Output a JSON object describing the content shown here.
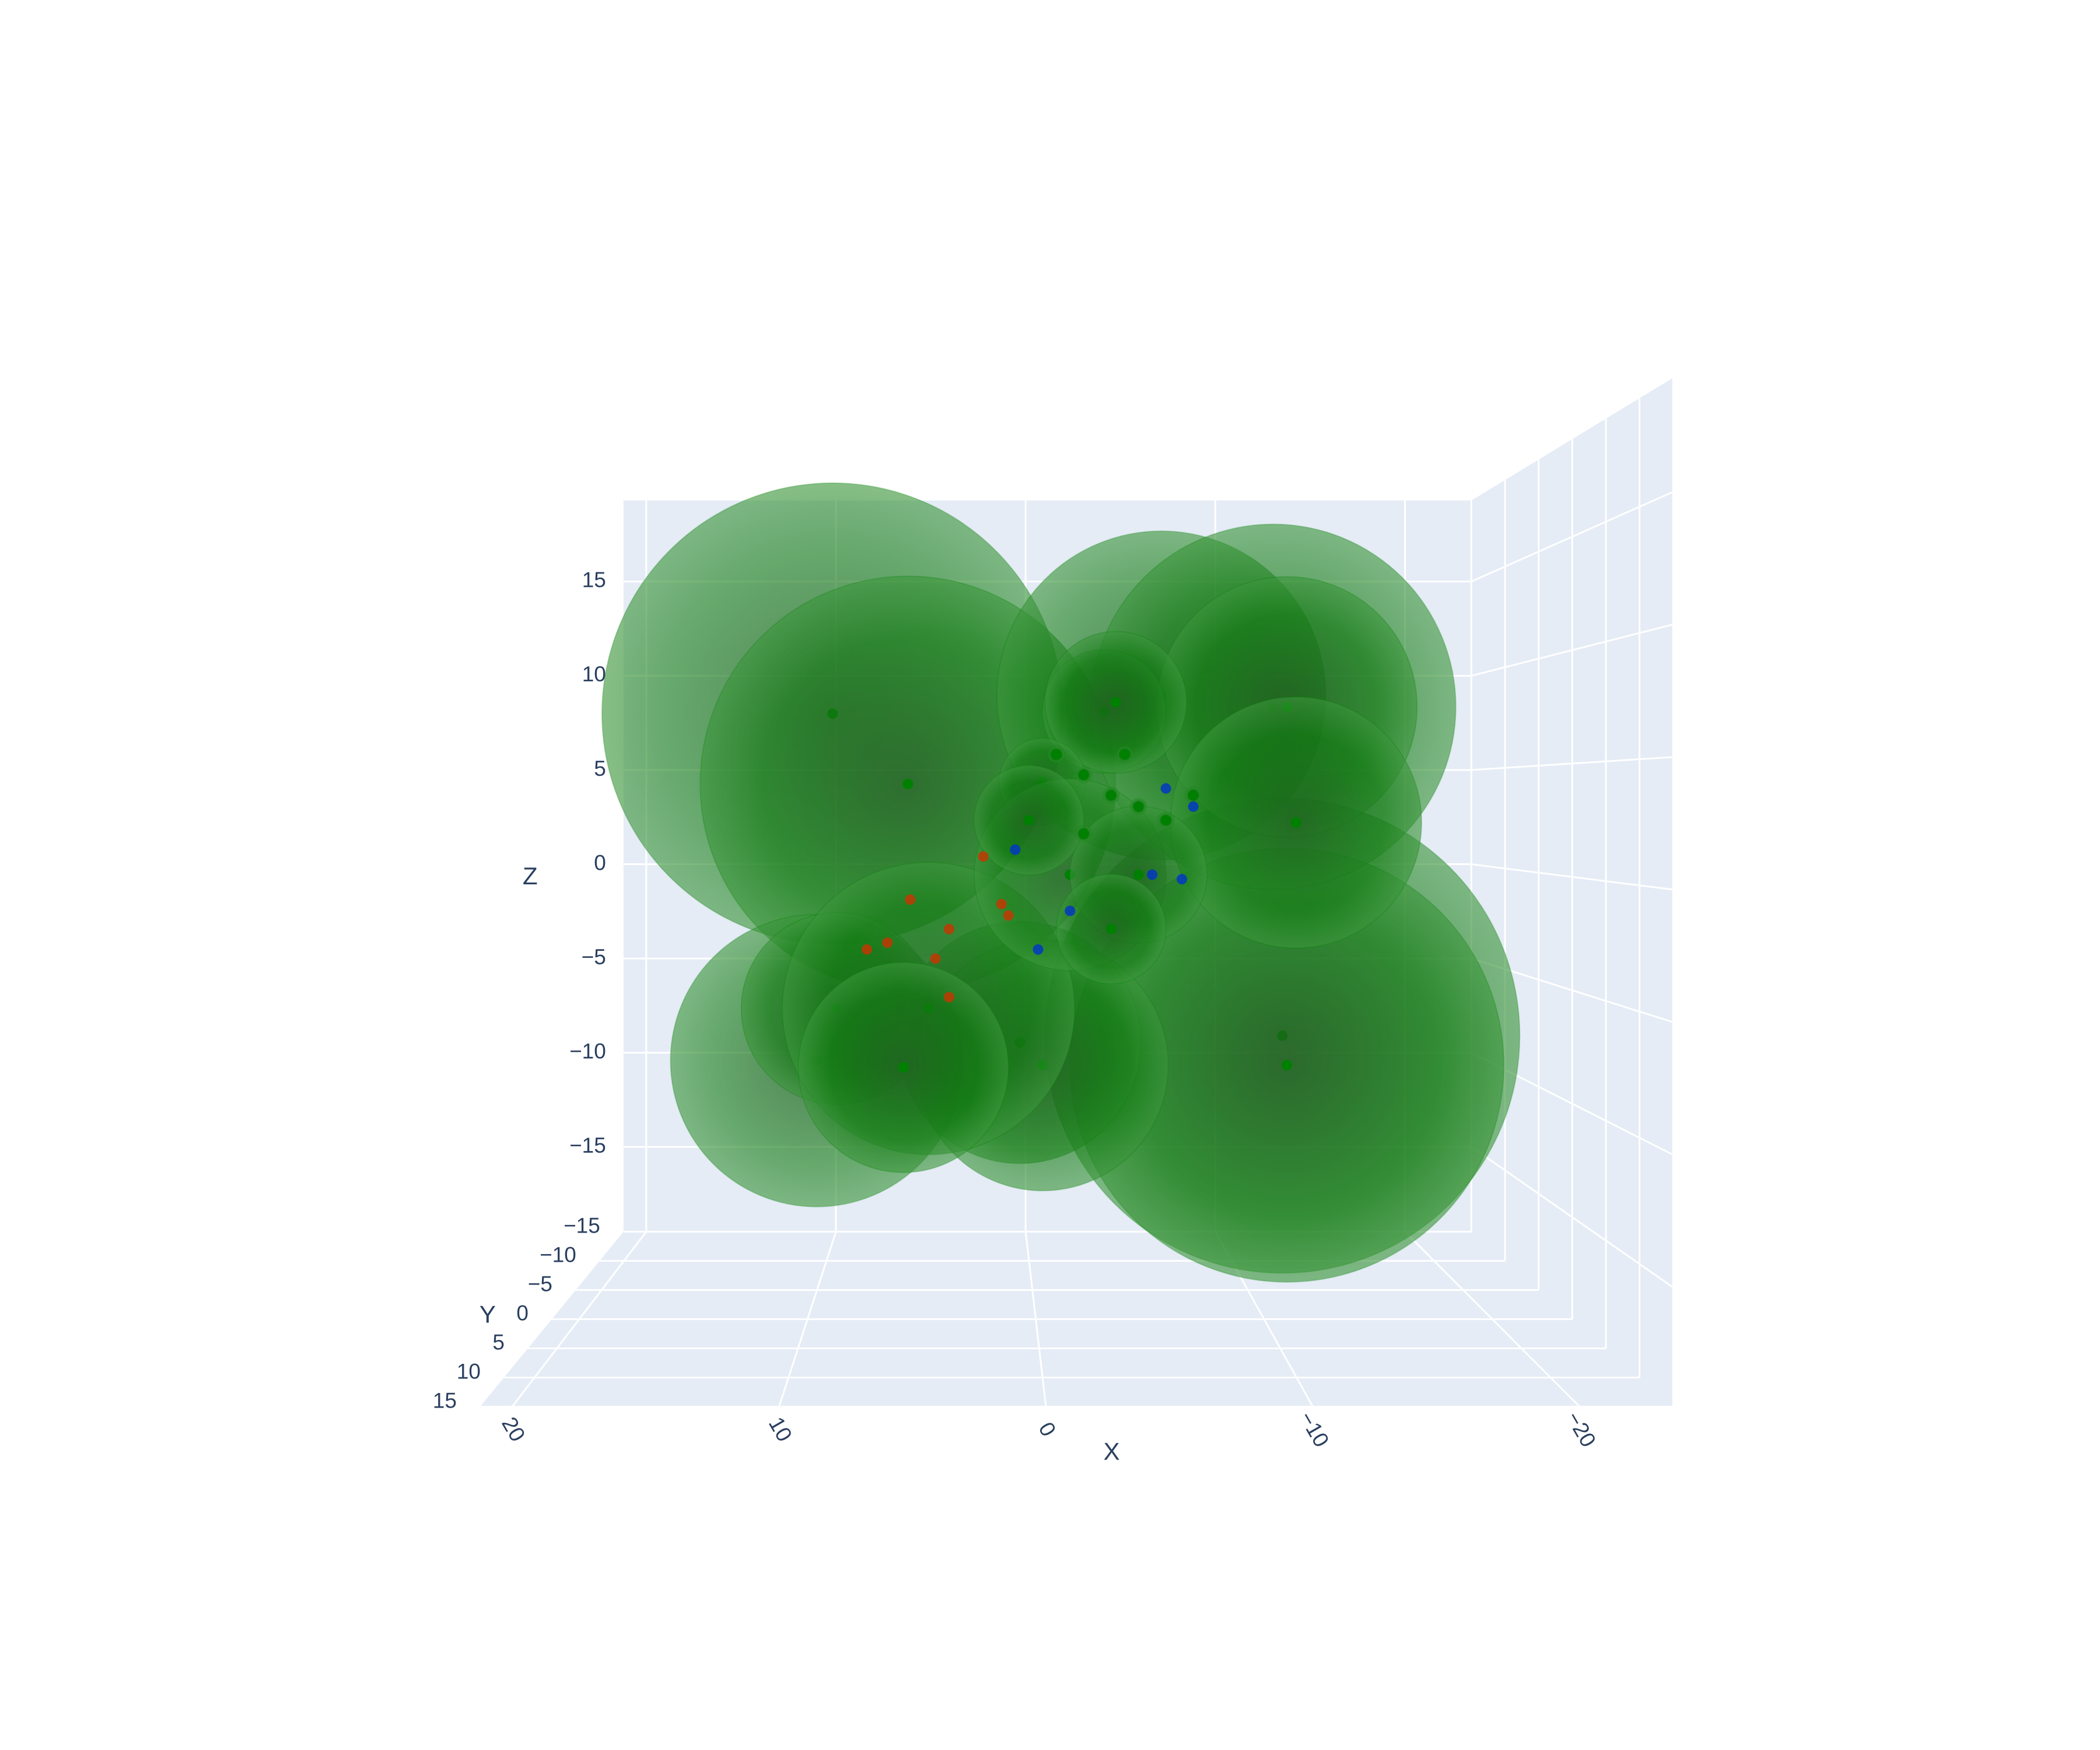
{
  "chart_data": {
    "type": "scatter3d",
    "xlabel": "X",
    "ylabel": "Y",
    "zlabel": "Z",
    "xlim": [
      -23.5,
      21.2
    ],
    "ylim": [
      -15,
      15
    ],
    "zlim": [
      -19.5,
      19.3
    ],
    "xticks": [
      {
        "value": -20,
        "label": "−20"
      },
      {
        "value": -10,
        "label": "−10"
      },
      0,
      10,
      20
    ],
    "yticks": [
      {
        "value": -15,
        "label": "−15"
      },
      {
        "value": -10,
        "label": "−10"
      },
      {
        "value": -5,
        "label": "−5"
      },
      0,
      5,
      10,
      15
    ],
    "zticks": [
      {
        "value": -15,
        "label": "−15"
      },
      {
        "value": -10,
        "label": "−10"
      },
      {
        "value": -5,
        "label": "−5"
      },
      0,
      5,
      10,
      15
    ],
    "grid": true,
    "series": [
      {
        "color": "#008000",
        "x": [
          8.9,
          5.6,
          -10.8,
          -11.0,
          9.6,
          8.7,
          0.7,
          -0.3,
          4.7,
          5.8,
          -5.5,
          -10.4,
          -11.0,
          -11.4,
          -3.0,
          -3.5,
          -0.3,
          -1.5,
          -4.5,
          -3.3,
          0.3,
          -0.9,
          -2.1,
          -3.3,
          -4.5,
          -5.7,
          -2.1,
          -3.9,
          -6.9
        ],
        "y": [
          0,
          0,
          0,
          0,
          0,
          0,
          0,
          0,
          0,
          0,
          0,
          0,
          0,
          0,
          0,
          0,
          0,
          0,
          0,
          0,
          0,
          0,
          0,
          0,
          0,
          0,
          0,
          0,
          0
        ],
        "z": [
          7.2,
          4.1,
          -7.0,
          -8.3,
          -8.1,
          -5.8,
          -7.3,
          -8.3,
          -5.8,
          -8.4,
          8.0,
          7.5,
          7.5,
          2.4,
          7.3,
          7.7,
          4.2,
          0.1,
          0.1,
          -2.3,
          2.5,
          5.4,
          4.5,
          3.6,
          3.1,
          2.5,
          1.9,
          5.4,
          3.6
        ],
        "size": [
          10.1,
          9.1,
          10.4,
          9.5,
          6.4,
          4.2,
          5.3,
          5.5,
          6.4,
          4.6,
          7.2,
          8.0,
          5.7,
          5.5,
          2.7,
          3.1,
          1.9,
          4.2,
          3.0,
          2.4,
          2.4,
          0.35,
          0.35,
          0.35,
          0.35,
          0.35,
          0.35,
          0.35,
          0.35
        ]
      },
      {
        "color": "#cc3300",
        "x": [
          7.4,
          5.5,
          3.8,
          1.5,
          2.3,
          1.2,
          3.8,
          6.5,
          4.4
        ],
        "y": [
          0,
          0,
          0,
          0,
          0,
          0,
          0,
          0,
          0
        ],
        "z": [
          -3.2,
          -1.0,
          -2.3,
          -1.2,
          0.9,
          -1.7,
          -5.3,
          -2.9,
          -3.6
        ]
      },
      {
        "color": "#0033cc",
        "x": [
          -6.4,
          -5.7,
          -1.5,
          0.9,
          -0.1,
          -5.1,
          -6.9
        ],
        "y": [
          0,
          0,
          0,
          0,
          0,
          0,
          0
        ],
        "z": [
          -0.1,
          3.9,
          -1.5,
          1.2,
          -3.2,
          0.1,
          3.1
        ]
      }
    ]
  }
}
